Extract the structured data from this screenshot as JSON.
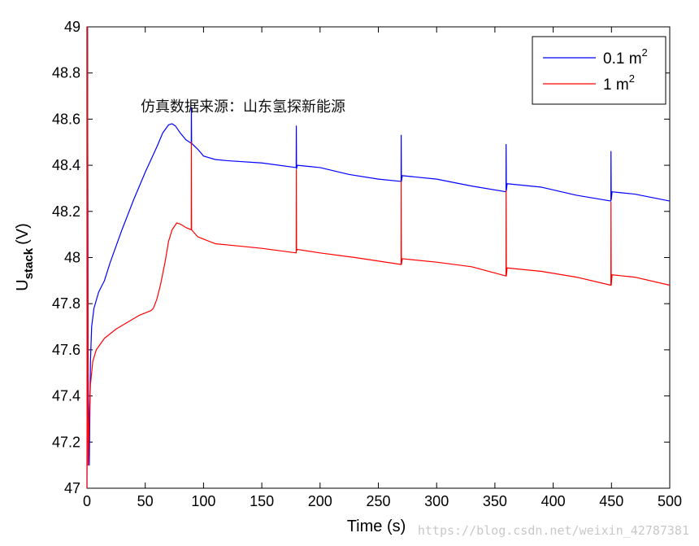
{
  "chart_data": {
    "type": "line",
    "title": "",
    "xlabel": "Time (s)",
    "ylabel_main": "U",
    "ylabel_sub": "stack",
    "ylabel_unit": "(V)",
    "xlim": [
      0,
      500
    ],
    "ylim": [
      47,
      49
    ],
    "xticks": [
      0,
      50,
      100,
      150,
      200,
      250,
      300,
      350,
      400,
      450,
      500
    ],
    "yticks": [
      47,
      47.2,
      47.4,
      47.6,
      47.8,
      48,
      48.2,
      48.4,
      48.6,
      48.8,
      49
    ],
    "ytick_labels": [
      "47",
      "47.2",
      "47.4",
      "47.6",
      "47.8",
      "48",
      "48.2",
      "48.4",
      "48.6",
      "48.8",
      "49"
    ],
    "grid": false,
    "legend_position": "top-right",
    "annotation": "仿真数据来源：山东氢探新能源",
    "watermark": "https://blog.csdn.net/weixin_42787381",
    "series": [
      {
        "name": "0.1 m",
        "sup": "2",
        "color": "#0000ff",
        "points": [
          [
            0,
            47.0
          ],
          [
            0.5,
            49.0
          ],
          [
            1,
            47.5
          ],
          [
            2,
            47.1
          ],
          [
            3,
            47.55
          ],
          [
            4,
            47.7
          ],
          [
            6,
            47.78
          ],
          [
            10,
            47.85
          ],
          [
            15,
            47.9
          ],
          [
            20,
            47.98
          ],
          [
            30,
            48.12
          ],
          [
            40,
            48.25
          ],
          [
            50,
            48.37
          ],
          [
            60,
            48.48
          ],
          [
            65,
            48.54
          ],
          [
            70,
            48.575
          ],
          [
            73,
            48.58
          ],
          [
            76,
            48.57
          ],
          [
            80,
            48.54
          ],
          [
            85,
            48.51
          ],
          [
            89.5,
            48.495
          ],
          [
            89.6,
            48.65
          ],
          [
            89.8,
            48.495
          ],
          [
            95,
            48.47
          ],
          [
            100,
            48.44
          ],
          [
            110,
            48.425
          ],
          [
            120,
            48.42
          ],
          [
            150,
            48.41
          ],
          [
            179.5,
            48.39
          ],
          [
            179.6,
            48.57
          ],
          [
            179.8,
            48.385
          ],
          [
            180.5,
            48.4
          ],
          [
            200,
            48.39
          ],
          [
            225,
            48.36
          ],
          [
            250,
            48.34
          ],
          [
            269.5,
            48.33
          ],
          [
            269.6,
            48.53
          ],
          [
            269.8,
            48.33
          ],
          [
            270.5,
            48.355
          ],
          [
            300,
            48.34
          ],
          [
            330,
            48.31
          ],
          [
            359.5,
            48.285
          ],
          [
            359.6,
            48.49
          ],
          [
            359.8,
            48.29
          ],
          [
            360.5,
            48.32
          ],
          [
            390,
            48.305
          ],
          [
            420,
            48.27
          ],
          [
            449.5,
            48.245
          ],
          [
            449.6,
            48.46
          ],
          [
            449.8,
            48.25
          ],
          [
            450.5,
            48.285
          ],
          [
            470,
            48.275
          ],
          [
            500,
            48.245
          ]
        ]
      },
      {
        "name": "1 m",
        "sup": "2",
        "color": "#ff0000",
        "points": [
          [
            0,
            47.0
          ],
          [
            0.5,
            49.0
          ],
          [
            1,
            47.1
          ],
          [
            2,
            47.3
          ],
          [
            3,
            47.45
          ],
          [
            5,
            47.55
          ],
          [
            8,
            47.6
          ],
          [
            15,
            47.65
          ],
          [
            25,
            47.69
          ],
          [
            35,
            47.72
          ],
          [
            45,
            47.75
          ],
          [
            55,
            47.77
          ],
          [
            57,
            47.78
          ],
          [
            60,
            47.82
          ],
          [
            63,
            47.88
          ],
          [
            67,
            47.98
          ],
          [
            70,
            48.07
          ],
          [
            73,
            48.12
          ],
          [
            77,
            48.15
          ],
          [
            80,
            48.145
          ],
          [
            85,
            48.13
          ],
          [
            89.5,
            48.12
          ],
          [
            89.6,
            48.5
          ],
          [
            89.8,
            48.12
          ],
          [
            95,
            48.09
          ],
          [
            100,
            48.08
          ],
          [
            110,
            48.06
          ],
          [
            130,
            48.05
          ],
          [
            150,
            48.04
          ],
          [
            179.5,
            48.02
          ],
          [
            179.6,
            48.38
          ],
          [
            179.8,
            48.03
          ],
          [
            180.5,
            48.035
          ],
          [
            200,
            48.02
          ],
          [
            230,
            48.0
          ],
          [
            269.5,
            47.97
          ],
          [
            269.6,
            48.33
          ],
          [
            269.8,
            47.97
          ],
          [
            270.5,
            47.995
          ],
          [
            300,
            47.98
          ],
          [
            330,
            47.96
          ],
          [
            359.5,
            47.92
          ],
          [
            359.6,
            48.29
          ],
          [
            359.8,
            47.92
          ],
          [
            360.5,
            47.955
          ],
          [
            390,
            47.94
          ],
          [
            420,
            47.915
          ],
          [
            449.5,
            47.88
          ],
          [
            449.6,
            48.24
          ],
          [
            449.8,
            47.88
          ],
          [
            450.5,
            47.925
          ],
          [
            470,
            47.915
          ],
          [
            500,
            47.88
          ]
        ]
      }
    ]
  }
}
